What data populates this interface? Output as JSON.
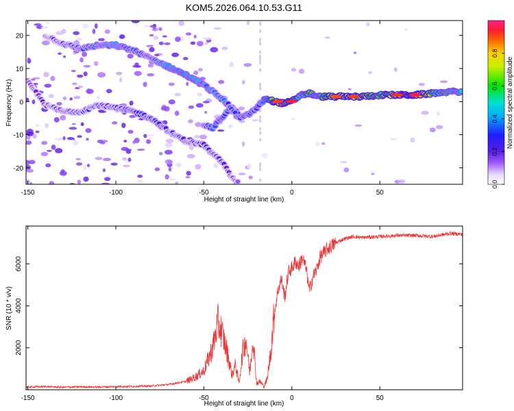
{
  "chart_data": {
    "title": "KOM5.2026.064.10.53.G11",
    "panels": [
      {
        "type": "heatmap",
        "name": "spectrogram",
        "xlabel": "Height of straight line (km)",
        "ylabel": "Frequency (Hz)",
        "xlim": [
          -151,
          97
        ],
        "ylim": [
          -25,
          24.5
        ],
        "xticks": [
          -150,
          -100,
          -50,
          0,
          50
        ],
        "yticks": [
          -20,
          -10,
          0,
          10,
          20
        ],
        "colorbar": {
          "label": "Normalized spectral amplitude",
          "range": [
            0,
            1
          ],
          "ticks": [
            0.0,
            0.2,
            0.4,
            0.6,
            0.8
          ]
        },
        "traces": [
          {
            "name": "upper descending branch",
            "points": [
              [
                -140,
                20
              ],
              [
                -130,
                17.5
              ],
              [
                -120,
                16
              ],
              [
                -110,
                17
              ],
              [
                -100,
                17
              ],
              [
                -90,
                15.5
              ],
              [
                -80,
                13
              ],
              [
                -70,
                10.5
              ],
              [
                -60,
                8
              ],
              [
                -50,
                5
              ],
              [
                -40,
                1
              ],
              [
                -30,
                -4
              ]
            ],
            "amplitude": [
              0.2,
              0.25,
              0.3,
              0.35,
              0.4,
              0.35,
              0.3,
              0.4,
              0.45,
              0.4,
              0.35,
              0.3
            ]
          },
          {
            "name": "lower branch",
            "points": [
              [
                -150,
                6
              ],
              [
                -140,
                -1
              ],
              [
                -130,
                -3
              ],
              [
                -120,
                -3
              ],
              [
                -110,
                -1
              ],
              [
                -100,
                -2
              ],
              [
                -90,
                -3
              ],
              [
                -80,
                -5
              ],
              [
                -70,
                -9
              ],
              [
                -60,
                -12
              ],
              [
                -50,
                -13
              ],
              [
                -45,
                -16
              ],
              [
                -40,
                -18
              ],
              [
                -35,
                -22
              ],
              [
                -30,
                -25
              ]
            ],
            "amplitude": [
              0.15,
              0.2,
              0.25,
              0.25,
              0.25,
              0.25,
              0.3,
              0.3,
              0.25,
              0.25,
              0.25,
              0.25,
              0.25,
              0.2,
              0.15
            ]
          },
          {
            "name": "mid cluster",
            "points": [
              [
                -50,
                -7
              ],
              [
                -45,
                -8
              ],
              [
                -40,
                -5
              ],
              [
                -35,
                -2
              ],
              [
                -30,
                -5
              ],
              [
                -25,
                -4
              ],
              [
                -20,
                -2
              ],
              [
                -15,
                1
              ]
            ],
            "amplitude": [
              0.3,
              0.35,
              0.35,
              0.3,
              0.35,
              0.35,
              0.35,
              0.4
            ]
          },
          {
            "name": "main near-zero line",
            "points": [
              [
                -15,
                1
              ],
              [
                -10,
                0
              ],
              [
                -5,
                -0.5
              ],
              [
                0,
                0
              ],
              [
                5,
                2
              ],
              [
                10,
                2.5
              ],
              [
                15,
                1.5
              ],
              [
                20,
                1.5
              ],
              [
                30,
                1.5
              ],
              [
                40,
                1.5
              ],
              [
                50,
                2
              ],
              [
                60,
                2
              ],
              [
                70,
                2
              ],
              [
                80,
                2.5
              ],
              [
                90,
                3
              ],
              [
                97,
                3
              ]
            ],
            "amplitude": [
              0.5,
              0.7,
              0.9,
              0.8,
              0.5,
              0.6,
              0.5,
              0.7,
              0.85,
              0.7,
              0.6,
              0.85,
              0.9,
              0.6,
              0.5,
              0.5
            ]
          }
        ]
      },
      {
        "type": "line",
        "name": "snr",
        "xlabel": "Height of straight line (km)",
        "ylabel": "SNR (10 * v/v)",
        "xlim": [
          -151,
          97
        ],
        "ylim": [
          0,
          7800
        ],
        "xticks": [
          -150,
          -100,
          -50,
          0,
          50
        ],
        "yticks": [
          2000,
          4000,
          6000
        ],
        "color": "#ee3333",
        "x": [
          -151,
          -140,
          -130,
          -120,
          -110,
          -100,
          -90,
          -80,
          -70,
          -60,
          -55,
          -50,
          -45,
          -42,
          -40,
          -38,
          -36,
          -34,
          -32,
          -30,
          -28,
          -26,
          -24,
          -22,
          -20,
          -18,
          -16,
          -14,
          -12,
          -10,
          -8,
          -6,
          -4,
          -2,
          0,
          2,
          4,
          6,
          8,
          10,
          12,
          14,
          16,
          18,
          20,
          25,
          30,
          35,
          40,
          50,
          60,
          70,
          80,
          90,
          97
        ],
        "values": [
          130,
          150,
          120,
          140,
          130,
          150,
          160,
          180,
          250,
          400,
          600,
          900,
          2000,
          3200,
          2800,
          2200,
          1500,
          700,
          1200,
          300,
          1800,
          2400,
          800,
          2500,
          300,
          400,
          150,
          500,
          1800,
          3600,
          4700,
          5300,
          4400,
          5600,
          5800,
          6100,
          5900,
          6300,
          5800,
          4700,
          5400,
          5700,
          6300,
          6500,
          6700,
          7000,
          7200,
          7300,
          7250,
          7300,
          7350,
          7350,
          7300,
          7450,
          7400
        ]
      }
    ]
  }
}
